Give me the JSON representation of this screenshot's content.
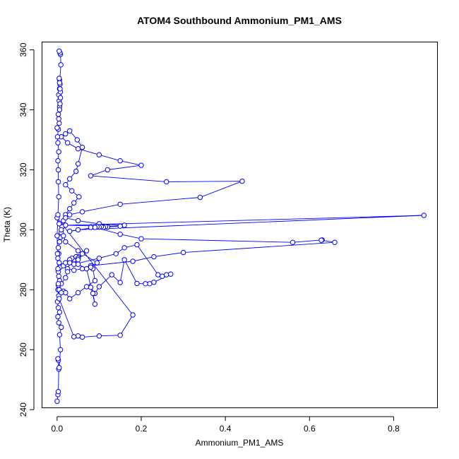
{
  "chart_data": {
    "type": "line",
    "title": "ATOM4 Southbound Ammonium_PM1_AMS",
    "xlabel": "Ammonium_PM1_AMS",
    "ylabel": "Theta (K)",
    "xlim": [
      -0.035,
      0.905
    ],
    "ylim": [
      240.5,
      362.5
    ],
    "x_ticks": [
      0.0,
      0.2,
      0.4,
      0.6,
      0.8
    ],
    "x_tick_labels": [
      "0.0",
      "0.2",
      "0.4",
      "0.6",
      "0.8"
    ],
    "y_ticks": [
      240,
      260,
      280,
      300,
      320,
      340,
      360
    ],
    "y_tick_labels": [
      "240",
      "260",
      "280",
      "300",
      "320",
      "340",
      "360"
    ],
    "line_color": "#0000ff",
    "marker": "open-circle",
    "series": [
      {
        "x": [
          0.0,
          0.002,
          0.003,
          0.004,
          0.003,
          0.002,
          0.005,
          0.008,
          0.006,
          0.01,
          0.004,
          0.002,
          0.006,
          0.003,
          0.001,
          0.004,
          0.002,
          0.003,
          0.006,
          0.004,
          0.003,
          0.007,
          0.005,
          0.002,
          0.004,
          0.003,
          0.006,
          0.008,
          0.01,
          0.012,
          0.015,
          0.02,
          0.03,
          0.04,
          0.052,
          0.035,
          0.02,
          0.03,
          0.045,
          0.05,
          0.06,
          0.048,
          0.03,
          0.02,
          0.01,
          0.025,
          0.05,
          0.1,
          0.15,
          0.2,
          0.12,
          0.08,
          0.26,
          0.44,
          0.34,
          0.15,
          0.06,
          0.03,
          0.02,
          0.05,
          0.1,
          0.16,
          0.12,
          0.08,
          0.11,
          0.1,
          0.15,
          0.02,
          0.872,
          0.05,
          0.03,
          0.1,
          0.12,
          0.115,
          0.11,
          0.105,
          0.1,
          0.095,
          0.09,
          0.15,
          0.2,
          0.56,
          0.63,
          0.628,
          0.66,
          0.3,
          0.23,
          0.18,
          0.08,
          0.06,
          0.04,
          0.025,
          0.015,
          0.02,
          0.04,
          0.05,
          0.035,
          0.03,
          0.045,
          0.05,
          0.06,
          0.07,
          0.05,
          0.04,
          0.1,
          0.14,
          0.16,
          0.19,
          0.24,
          0.25,
          0.26,
          0.27,
          0.23,
          0.22,
          0.21,
          0.19,
          0.16,
          0.15,
          0.13,
          0.1,
          0.09,
          0.08,
          0.085,
          0.09,
          0.07,
          0.05,
          0.03,
          0.025,
          0.02,
          0.01,
          0.005,
          0.015,
          0.02,
          0.03,
          0.05,
          0.07,
          0.09,
          0.085,
          0.08,
          0.095,
          0.05,
          0.02,
          0.015,
          0.01,
          0.005,
          0.0,
          0.18,
          0.15,
          0.1,
          0.06,
          0.05,
          0.04,
          0.005,
          0.01,
          0.003,
          0.002,
          0.001,
          0.0,
          0.002,
          0.004,
          0.003,
          0.003,
          0.002,
          0.004,
          0.002,
          0.001,
          0.003,
          0.0,
          0.005,
          0.004,
          0.003,
          0.006,
          0.005,
          0.004,
          0.006,
          0.007,
          0.006,
          0.005,
          0.008,
          0.007,
          0.006,
          0.008,
          0.007,
          0.006,
          0.009,
          0.008,
          0.007,
          0.005
        ],
        "y": [
          242.8,
          245.0,
          246.0,
          253.5,
          256.5,
          257.0,
          254.0,
          260.0,
          265.0,
          267.5,
          269.0,
          271.0,
          272.5,
          274.0,
          276.0,
          278.0,
          280.0,
          281.5,
          283.0,
          284.5,
          286.0,
          287.5,
          289.0,
          290.5,
          292.0,
          294.0,
          296.0,
          297.5,
          299.0,
          301.0,
          303.0,
          305.0,
          307.0,
          309.0,
          311.0,
          313.0,
          315.0,
          317.0,
          319.5,
          322.0,
          327.5,
          330.0,
          333.0,
          332.0,
          331.0,
          329.0,
          327.0,
          325.0,
          323.0,
          321.5,
          320.0,
          318.0,
          316.0,
          316.2,
          310.8,
          308.5,
          306.0,
          305.0,
          304.0,
          303.0,
          302.0,
          301.5,
          301.0,
          300.8,
          301.0,
          300.9,
          301.2,
          301.5,
          304.8,
          300.0,
          299.5,
          301.0,
          300.9,
          301.0,
          300.8,
          301.0,
          300.9,
          301.0,
          300.8,
          298.5,
          297.0,
          295.8,
          296.6,
          296.5,
          295.8,
          292.4,
          291.0,
          289.5,
          288.0,
          287.0,
          286.5,
          287.0,
          288.0,
          289.0,
          290.0,
          291.0,
          290.5,
          290.0,
          291.0,
          290.5,
          292.0,
          293.0,
          290.0,
          288.5,
          290.5,
          292.0,
          294.0,
          295.0,
          285.0,
          284.5,
          285.0,
          285.2,
          282.5,
          282.0,
          282.0,
          282.1,
          290.0,
          282.4,
          285.0,
          281.0,
          278.8,
          280.8,
          278.8,
          275.2,
          287.0,
          288.5,
          289.0,
          286.0,
          284.0,
          282.0,
          280.0,
          279.5,
          279.0,
          277.0,
          279.0,
          281.0,
          283.0,
          287.0,
          287.5,
          289.0,
          293.0,
          296.0,
          298.0,
          300.0,
          302.0,
          304.0,
          271.6,
          264.8,
          264.6,
          264.2,
          264.6,
          264.3,
          277.0,
          279.0,
          282.0,
          287.0,
          292.0,
          298.0,
          305.0,
          311.0,
          316.0,
          320.0,
          323.0,
          326.0,
          329.0,
          331.0,
          333.5,
          334.0,
          335.5,
          337.0,
          338.5,
          341.0,
          343.0,
          345.0,
          347.0,
          348.5,
          350.0,
          350.5,
          346.0,
          342.0,
          340.0,
          344.0,
          347.0,
          349.0,
          355.0,
          358.5,
          359.0,
          359.6
        ]
      }
    ]
  }
}
